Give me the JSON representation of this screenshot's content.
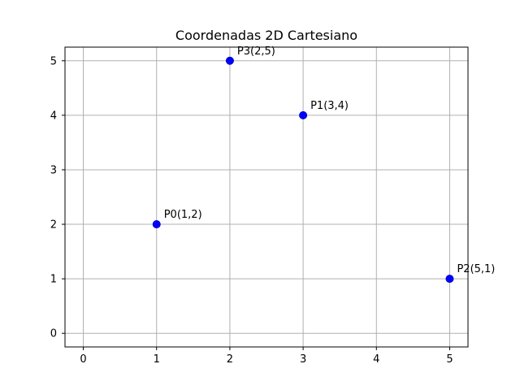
{
  "chart_data": {
    "type": "scatter",
    "title": "Coordenadas 2D Cartesiano",
    "xlabel": "",
    "ylabel": "",
    "xlim": [
      -0.25,
      5.25
    ],
    "ylim": [
      -0.25,
      5.25
    ],
    "xticks": [
      "0",
      "1",
      "2",
      "3",
      "4",
      "5"
    ],
    "yticks": [
      "0",
      "1",
      "2",
      "3",
      "4",
      "5"
    ],
    "grid": true,
    "point_color": "#0000ff",
    "grid_color": "#b0b0b0",
    "points": [
      {
        "label": "P0(1,2)",
        "x": 1,
        "y": 2
      },
      {
        "label": "P1(3,4)",
        "x": 3,
        "y": 4
      },
      {
        "label": "P2(5,1)",
        "x": 5,
        "y": 1
      },
      {
        "label": "P3(2,5)",
        "x": 2,
        "y": 5
      }
    ]
  }
}
